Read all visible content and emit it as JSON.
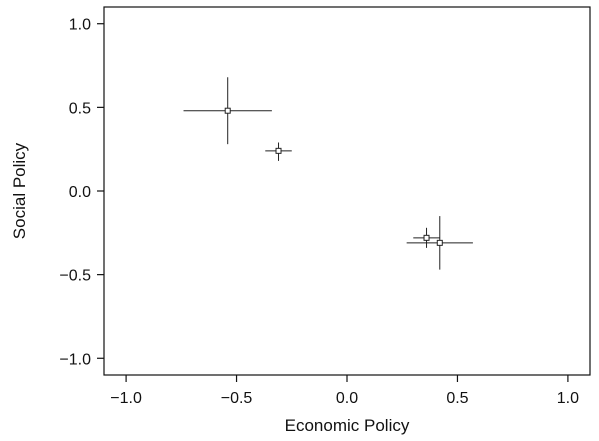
{
  "chart_data": {
    "type": "scatter",
    "title": "",
    "xlabel": "Economic Policy",
    "ylabel": "Social Policy",
    "xlim": [
      -1.1,
      1.1
    ],
    "ylim": [
      -1.1,
      1.1
    ],
    "xticks": [
      -1.0,
      -0.5,
      0.0,
      0.5,
      1.0
    ],
    "yticks": [
      -1.0,
      -0.5,
      0.0,
      0.5,
      1.0
    ],
    "xtick_labels": [
      "−1.0",
      "−0.5",
      "0.0",
      "0.5",
      "1.0"
    ],
    "ytick_labels": [
      "−1.0",
      "−0.5",
      "0.0",
      "0.5",
      "1.0"
    ],
    "grid": false,
    "legend": "none",
    "marker": "open-square",
    "error_bars": "horizontal and vertical intervals",
    "points": [
      {
        "x": -0.54,
        "y": 0.48,
        "x_low": -0.74,
        "x_high": -0.34,
        "y_low": 0.28,
        "y_high": 0.68
      },
      {
        "x": -0.31,
        "y": 0.24,
        "x_low": -0.37,
        "x_high": -0.25,
        "y_low": 0.18,
        "y_high": 0.29
      },
      {
        "x": 0.36,
        "y": -0.28,
        "x_low": 0.3,
        "x_high": 0.42,
        "y_low": -0.34,
        "y_high": -0.22
      },
      {
        "x": 0.42,
        "y": -0.31,
        "x_low": 0.27,
        "x_high": 0.57,
        "y_low": -0.47,
        "y_high": -0.15
      }
    ]
  }
}
